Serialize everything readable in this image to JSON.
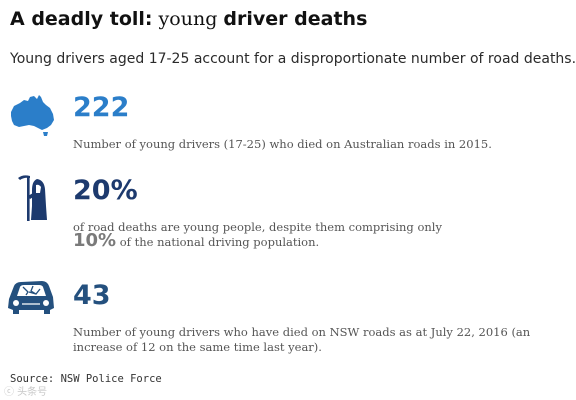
{
  "header": {
    "title_part1": "A deadly toll:",
    "title_part2": "young",
    "title_part3": "driver deaths",
    "subtitle": "Young drivers aged 17-25 account for a disproportionate number of road deaths."
  },
  "stats": [
    {
      "icon": "australia-map-icon",
      "number": "222",
      "description": "Number of young drivers (17-25) who died on Australian roads in 2015."
    },
    {
      "icon": "grim-reaper-icon",
      "number": "20%",
      "description_line1": "of road deaths are young people, despite them comprising only",
      "highlight": "10%",
      "description_line2": "of the national driving population."
    },
    {
      "icon": "crashed-car-icon",
      "number": "43",
      "description_line1": "Number of young drivers who have died on NSW roads as at July 22, 2016 (an",
      "description_line2": "increase of 12 on the same time last year)."
    }
  ],
  "source": "Source: NSW Police Force",
  "watermark": "ⓒ 头条号",
  "colors": {
    "blue": "#2b7ec9",
    "navy": "#1d3a6e",
    "dark_blue": "#24507e",
    "text": "#555555",
    "highlight_grey": "#7a7a7a"
  }
}
